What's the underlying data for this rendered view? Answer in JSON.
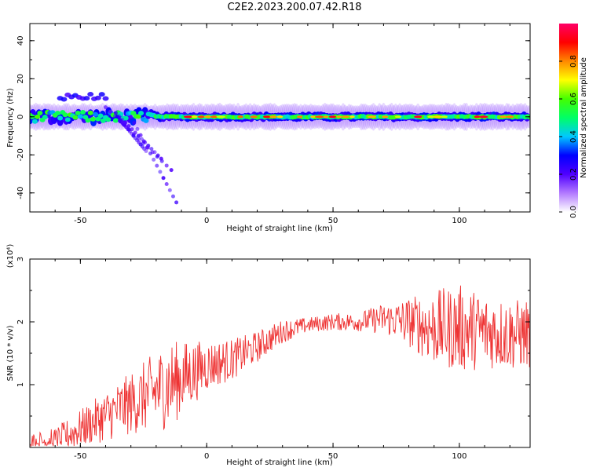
{
  "title": "C2E2.2023.200.07.42.R18",
  "chart_data": [
    {
      "type": "heatmap",
      "xlabel": "Height of straight line (km)",
      "ylabel": "Frequency (Hz)",
      "xlim": [
        -70,
        128
      ],
      "ylim": [
        -50,
        49
      ],
      "x_ticks": [
        "-50",
        "0",
        "50",
        "100"
      ],
      "y_ticks": [
        "40",
        "20",
        "0",
        "-20",
        "-40"
      ],
      "colorbar": {
        "label": "Normalized spectral amplitude",
        "range": [
          0,
          1
        ],
        "ticks": [
          "0.0",
          "0.2",
          "0.4",
          "0.6",
          "0.8"
        ],
        "colors": [
          "#ffffff",
          "#b27aff",
          "#5000ff",
          "#0000ff",
          "#00c8ff",
          "#00ff66",
          "#44ff00",
          "#ffff00",
          "#ff8800",
          "#ff0000",
          "#ff0066"
        ]
      },
      "main_band": {
        "frequency_hz": 0,
        "spans_km": [
          -70,
          128
        ]
      },
      "features": [
        {
          "description_x_km": [
            -60,
            -40
          ],
          "frequency_hz": 10
        },
        {
          "description_x_km": [
            -40,
            -15
          ],
          "frequency_hz_end": -45
        }
      ]
    },
    {
      "type": "line",
      "xlabel": "Height of straight line (km)",
      "ylabel": "SNR (10 * v/v)",
      "y_multiplier": "(x10⁴)",
      "xlim": [
        -70,
        128
      ],
      "ylim": [
        0,
        3
      ],
      "x_ticks": [
        "-50",
        "0",
        "50",
        "100"
      ],
      "y_ticks": [
        "3",
        "2",
        "1"
      ],
      "line_color": "#ee3333",
      "trend": {
        "x": [
          -70,
          -60,
          -50,
          -40,
          -30,
          -20,
          -10,
          0,
          10,
          20,
          30,
          40,
          50,
          60,
          70,
          80,
          90,
          100,
          110,
          120,
          128
        ],
        "y": [
          0.1,
          0.1,
          0.3,
          0.5,
          0.7,
          0.9,
          1.1,
          1.3,
          1.4,
          1.6,
          1.85,
          1.95,
          2.0,
          2.0,
          2.05,
          2.0,
          1.9,
          1.9,
          1.85,
          1.8,
          1.8
        ]
      },
      "noise_amplitude": {
        "x": [
          -70,
          -50,
          -30,
          -15,
          0,
          20,
          40,
          60,
          75,
          90,
          100,
          110,
          128
        ],
        "y": [
          0.12,
          0.3,
          0.5,
          0.7,
          0.4,
          0.25,
          0.12,
          0.15,
          0.3,
          0.6,
          0.7,
          0.6,
          0.55
        ]
      }
    }
  ]
}
